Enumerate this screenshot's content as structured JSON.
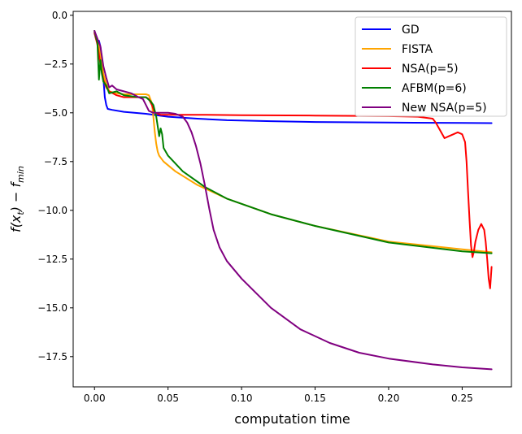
{
  "chart_data": {
    "type": "line",
    "title": "",
    "xlabel": "computation time",
    "ylabel": "f(x_t) − f_min",
    "ylabel_main": "f(x",
    "ylabel_sub1": "t",
    "ylabel_mid": ") − f",
    "ylabel_sub2": "min",
    "xlim": [
      -0.0145,
      0.2835
    ],
    "ylim": [
      -19.05,
      0.2
    ],
    "xticks": [
      0.0,
      0.05,
      0.1,
      0.15,
      0.2,
      0.25
    ],
    "xtick_labels": [
      "0.00",
      "0.05",
      "0.10",
      "0.15",
      "0.20",
      "0.25"
    ],
    "yticks": [
      0.0,
      -2.5,
      -5.0,
      -7.5,
      -10.0,
      -12.5,
      -15.0,
      -17.5
    ],
    "ytick_labels": [
      "0.0",
      "−2.5",
      "−5.0",
      "−7.5",
      "−10.0",
      "−12.5",
      "−15.0",
      "−17.5"
    ],
    "grid": false,
    "legend_position": "top-right",
    "series": [
      {
        "name": "GD",
        "color": "#0000ff",
        "points": [
          [
            0.0,
            -0.9
          ],
          [
            0.001,
            -1.2
          ],
          [
            0.002,
            -1.4
          ],
          [
            0.003,
            -1.3
          ],
          [
            0.004,
            -1.6
          ],
          [
            0.005,
            -2.2
          ],
          [
            0.006,
            -3.2
          ],
          [
            0.007,
            -4.2
          ],
          [
            0.008,
            -4.6
          ],
          [
            0.009,
            -4.8
          ],
          [
            0.012,
            -4.85
          ],
          [
            0.02,
            -4.95
          ],
          [
            0.035,
            -5.05
          ],
          [
            0.05,
            -5.2
          ],
          [
            0.07,
            -5.3
          ],
          [
            0.09,
            -5.38
          ],
          [
            0.12,
            -5.43
          ],
          [
            0.15,
            -5.47
          ],
          [
            0.2,
            -5.5
          ],
          [
            0.25,
            -5.52
          ],
          [
            0.27,
            -5.53
          ]
        ]
      },
      {
        "name": "FISTA",
        "color": "#ffa500",
        "points": [
          [
            0.0,
            -0.8
          ],
          [
            0.002,
            -1.3
          ],
          [
            0.004,
            -2.0
          ],
          [
            0.006,
            -3.0
          ],
          [
            0.008,
            -3.5
          ],
          [
            0.01,
            -3.9
          ],
          [
            0.015,
            -4.0
          ],
          [
            0.02,
            -4.05
          ],
          [
            0.03,
            -4.05
          ],
          [
            0.035,
            -4.05
          ],
          [
            0.037,
            -4.1
          ],
          [
            0.039,
            -4.5
          ],
          [
            0.04,
            -5.2
          ],
          [
            0.041,
            -6.0
          ],
          [
            0.042,
            -6.6
          ],
          [
            0.043,
            -7.0
          ],
          [
            0.044,
            -7.2
          ],
          [
            0.047,
            -7.5
          ],
          [
            0.055,
            -8.0
          ],
          [
            0.07,
            -8.7
          ],
          [
            0.09,
            -9.4
          ],
          [
            0.12,
            -10.2
          ],
          [
            0.15,
            -10.8
          ],
          [
            0.2,
            -11.6
          ],
          [
            0.25,
            -12.0
          ],
          [
            0.27,
            -12.15
          ]
        ]
      },
      {
        "name": "NSA(p=5)",
        "color": "#ff0000",
        "points": [
          [
            0.0,
            -0.9
          ],
          [
            0.002,
            -1.5
          ],
          [
            0.004,
            -2.5
          ],
          [
            0.006,
            -3.3
          ],
          [
            0.008,
            -3.7
          ],
          [
            0.01,
            -3.9
          ],
          [
            0.015,
            -4.1
          ],
          [
            0.02,
            -4.2
          ],
          [
            0.03,
            -4.2
          ],
          [
            0.035,
            -4.2
          ],
          [
            0.037,
            -4.3
          ],
          [
            0.039,
            -4.6
          ],
          [
            0.041,
            -5.0
          ],
          [
            0.045,
            -5.1
          ],
          [
            0.07,
            -5.1
          ],
          [
            0.1,
            -5.12
          ],
          [
            0.15,
            -5.14
          ],
          [
            0.2,
            -5.17
          ],
          [
            0.22,
            -5.2
          ],
          [
            0.23,
            -5.3
          ],
          [
            0.232,
            -5.5
          ],
          [
            0.235,
            -5.9
          ],
          [
            0.238,
            -6.3
          ],
          [
            0.241,
            -6.2
          ],
          [
            0.244,
            -6.1
          ],
          [
            0.247,
            -6.0
          ],
          [
            0.25,
            -6.1
          ],
          [
            0.252,
            -6.5
          ],
          [
            0.253,
            -7.5
          ],
          [
            0.254,
            -9.0
          ],
          [
            0.255,
            -10.5
          ],
          [
            0.256,
            -11.8
          ],
          [
            0.257,
            -12.4
          ],
          [
            0.258,
            -12.1
          ],
          [
            0.259,
            -11.6
          ],
          [
            0.261,
            -11.0
          ],
          [
            0.263,
            -10.7
          ],
          [
            0.265,
            -11.0
          ],
          [
            0.266,
            -11.6
          ],
          [
            0.267,
            -12.5
          ],
          [
            0.268,
            -13.5
          ],
          [
            0.269,
            -14.0
          ],
          [
            0.27,
            -12.9
          ]
        ]
      },
      {
        "name": "AFBM(p=6)",
        "color": "#008000",
        "points": [
          [
            0.0,
            -0.8
          ],
          [
            0.002,
            -1.4
          ],
          [
            0.003,
            -3.3
          ],
          [
            0.004,
            -2.3
          ],
          [
            0.005,
            -3.0
          ],
          [
            0.006,
            -3.4
          ],
          [
            0.008,
            -3.6
          ],
          [
            0.01,
            -4.0
          ],
          [
            0.015,
            -3.9
          ],
          [
            0.02,
            -4.1
          ],
          [
            0.03,
            -4.2
          ],
          [
            0.035,
            -4.2
          ],
          [
            0.038,
            -4.4
          ],
          [
            0.04,
            -4.6
          ],
          [
            0.042,
            -5.2
          ],
          [
            0.044,
            -6.2
          ],
          [
            0.045,
            -5.8
          ],
          [
            0.046,
            -6.1
          ],
          [
            0.047,
            -6.8
          ],
          [
            0.05,
            -7.2
          ],
          [
            0.06,
            -8.0
          ],
          [
            0.075,
            -8.8
          ],
          [
            0.09,
            -9.4
          ],
          [
            0.12,
            -10.2
          ],
          [
            0.15,
            -10.8
          ],
          [
            0.2,
            -11.65
          ],
          [
            0.25,
            -12.1
          ],
          [
            0.27,
            -12.2
          ]
        ]
      },
      {
        "name": "New NSA(p=5)",
        "color": "#800080",
        "points": [
          [
            0.0,
            -0.8
          ],
          [
            0.002,
            -1.2
          ],
          [
            0.004,
            -1.6
          ],
          [
            0.006,
            -2.6
          ],
          [
            0.008,
            -3.2
          ],
          [
            0.01,
            -3.7
          ],
          [
            0.012,
            -3.6
          ],
          [
            0.015,
            -3.8
          ],
          [
            0.02,
            -3.9
          ],
          [
            0.025,
            -4.0
          ],
          [
            0.03,
            -4.2
          ],
          [
            0.033,
            -4.3
          ],
          [
            0.035,
            -4.6
          ],
          [
            0.037,
            -4.9
          ],
          [
            0.04,
            -5.0
          ],
          [
            0.05,
            -5.0
          ],
          [
            0.055,
            -5.05
          ],
          [
            0.06,
            -5.2
          ],
          [
            0.063,
            -5.5
          ],
          [
            0.066,
            -6.0
          ],
          [
            0.069,
            -6.7
          ],
          [
            0.072,
            -7.6
          ],
          [
            0.075,
            -8.7
          ],
          [
            0.078,
            -9.9
          ],
          [
            0.081,
            -11.0
          ],
          [
            0.085,
            -11.9
          ],
          [
            0.09,
            -12.6
          ],
          [
            0.1,
            -13.5
          ],
          [
            0.12,
            -15.0
          ],
          [
            0.14,
            -16.1
          ],
          [
            0.16,
            -16.8
          ],
          [
            0.18,
            -17.3
          ],
          [
            0.2,
            -17.6
          ],
          [
            0.23,
            -17.9
          ],
          [
            0.25,
            -18.05
          ],
          [
            0.27,
            -18.15
          ]
        ]
      }
    ]
  }
}
